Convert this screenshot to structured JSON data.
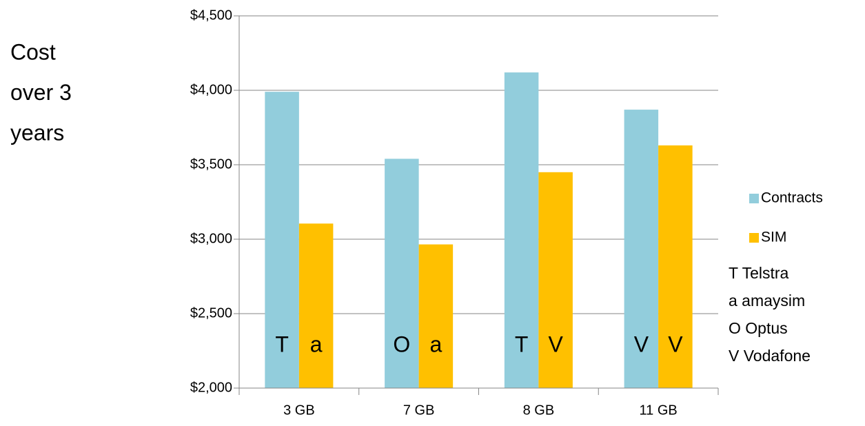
{
  "chart_data": {
    "type": "bar",
    "ylabel_lines": [
      "Cost",
      "over 3",
      "years"
    ],
    "categories": [
      "3 GB",
      "7 GB",
      "8 GB",
      "11 GB"
    ],
    "series": [
      {
        "name": "Contracts",
        "color": "#92cddc",
        "values": [
          3990,
          3540,
          4120,
          3870
        ],
        "letters": [
          "T",
          "O",
          "T",
          "V"
        ]
      },
      {
        "name": "SIM",
        "color": "#ffc000",
        "values": [
          3105,
          2965,
          3450,
          3630
        ],
        "letters": [
          "a",
          "a",
          "V",
          "V"
        ]
      }
    ],
    "key": [
      "T Telstra",
      "a amaysim",
      "O Optus",
      "V Vodafone"
    ],
    "ylim": [
      2000,
      4500
    ],
    "yticks": [
      {
        "value": 2000,
        "label": "$2,000"
      },
      {
        "value": 2500,
        "label": "$2,500"
      },
      {
        "value": 3000,
        "label": "$3,000"
      },
      {
        "value": 3500,
        "label": "$3,500"
      },
      {
        "value": 4000,
        "label": "$4,000"
      },
      {
        "value": 4500,
        "label": "$4,500"
      }
    ],
    "grid": true,
    "legend": "right"
  }
}
